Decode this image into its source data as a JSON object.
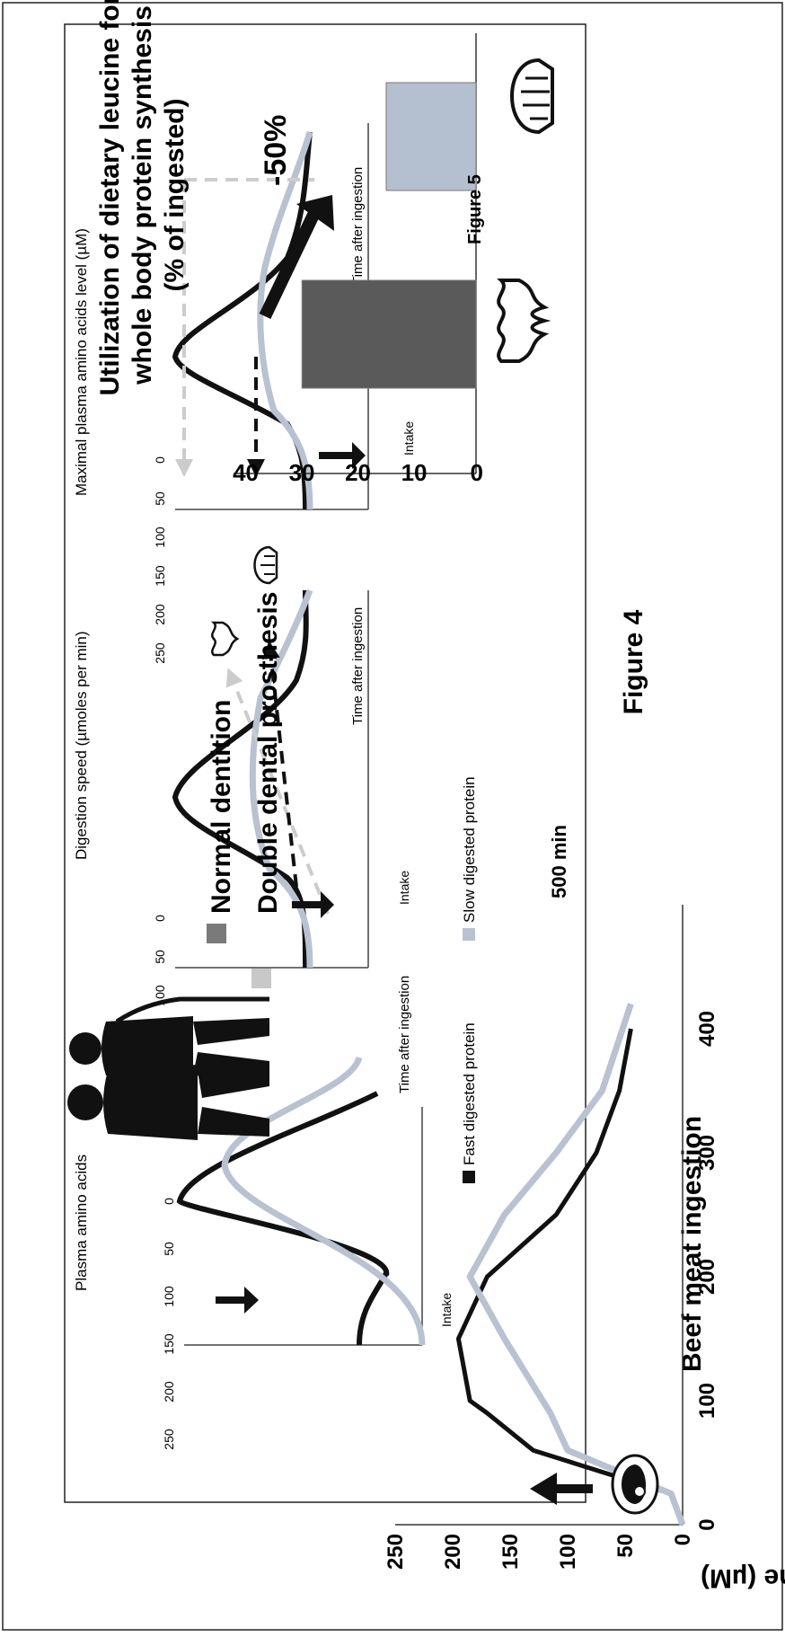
{
  "figure4": {
    "label": "Figure 4",
    "panel1": {
      "ylabel": "Plasma amino acids",
      "xlabel": "Time after ingestion",
      "intake": "Intake",
      "yticks": [
        "250",
        "200",
        "150",
        "100",
        "50",
        "0"
      ]
    },
    "panel2": {
      "ylabel": "Digestion speed (µmoles per min)",
      "xlabel": "Time after ingestion",
      "intake": "Intake",
      "yticks": [
        "250",
        "200",
        "150",
        "100",
        "50",
        "0"
      ]
    },
    "panel3": {
      "ylabel": "Maximal plasma amino acids level (µM)",
      "xlabel": "Time after ingestion",
      "intake": "Intake",
      "yticks": [
        "250",
        "200",
        "150",
        "100",
        "50",
        "0"
      ]
    },
    "legend": [
      {
        "label": "Fast digested protein",
        "color": "#111111"
      },
      {
        "label": "Slow digested protein",
        "color": "#b8c2d1"
      }
    ],
    "dentition_legend": [
      {
        "label": "Normal dentition",
        "color": "#7a7a7a"
      },
      {
        "label": "Double dental prosthesis",
        "color": "#c8c8c8"
      }
    ]
  },
  "figure5": {
    "label": "Figure 5",
    "title_line1": "Utilization of dietary leucine for",
    "title_line2": "whole body protein synthesis",
    "title_line3": "(% of ingested)",
    "annotation": "-50%",
    "chart_data": {
      "type": "bar",
      "categories": [
        "Normal dentition",
        "Double dental prosthesis"
      ],
      "values": [
        31,
        16
      ],
      "ylim": [
        0,
        40
      ],
      "yticks": [
        "0",
        "10",
        "20",
        "30",
        "40"
      ],
      "colors": [
        "#5a5a5a",
        "#b4bfd0"
      ]
    }
  },
  "beef_chart": {
    "title": "Beef meat ingestion",
    "ylabel": "Plasma Leucine (µM)",
    "xunit": "500 min",
    "chart_data": {
      "type": "line",
      "xlim": [
        0,
        500
      ],
      "ylim": [
        0,
        250
      ],
      "xticks": [
        "0",
        "100",
        "200",
        "300",
        "400"
      ],
      "yticks": [
        "0",
        "50",
        "100",
        "150",
        "200",
        "250"
      ],
      "series": [
        {
          "color": "#111111",
          "x": [
            0,
            25,
            60,
            90,
            100,
            150,
            200,
            250,
            300,
            350,
            400
          ],
          "y": [
            0,
            10,
            130,
            170,
            185,
            195,
            170,
            110,
            75,
            55,
            45
          ]
        },
        {
          "color": "#b8c2d1",
          "x": [
            0,
            25,
            60,
            90,
            150,
            200,
            250,
            300,
            350,
            420
          ],
          "y": [
            0,
            10,
            100,
            115,
            155,
            185,
            155,
            110,
            70,
            45
          ]
        }
      ]
    }
  }
}
